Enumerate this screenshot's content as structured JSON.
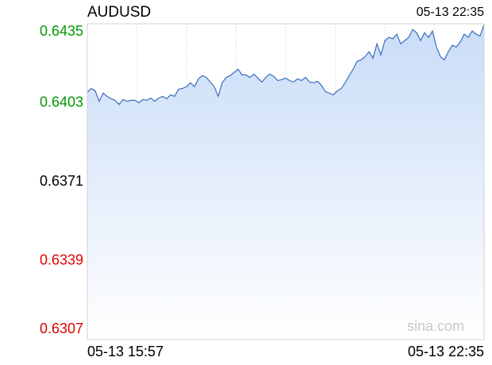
{
  "chart_data": {
    "type": "line",
    "title": "AUDUSD",
    "current_time": "05-13 22:35",
    "watermark": "sina.com",
    "categories": [
      "05-13 15:57",
      null,
      null,
      null,
      null,
      null,
      null,
      null,
      null,
      null,
      null,
      null,
      null,
      null,
      null,
      null,
      null,
      null,
      null,
      null,
      null,
      null,
      null,
      null,
      null,
      null,
      null,
      null,
      null,
      null,
      null,
      null,
      null,
      null,
      null,
      null,
      null,
      null,
      null,
      null,
      null,
      null,
      null,
      null,
      null,
      null,
      null,
      null,
      null,
      null,
      null,
      null,
      null,
      null,
      null,
      null,
      null,
      null,
      null,
      null,
      null,
      null,
      null,
      null,
      null,
      null,
      null,
      null,
      null,
      null,
      null,
      null,
      null,
      null,
      null,
      null,
      null,
      null,
      null,
      null,
      null,
      null,
      null,
      null,
      null,
      null,
      null,
      null,
      null,
      null,
      null,
      null,
      null,
      null,
      null,
      null,
      null,
      null,
      null,
      null,
      "05-13 22:35"
    ],
    "values": [
      0.64072,
      0.64088,
      0.64078,
      0.64036,
      0.64069,
      0.64056,
      0.64046,
      0.6404,
      0.64023,
      0.64043,
      0.64036,
      0.6404,
      0.6404,
      0.6403,
      0.64043,
      0.6404,
      0.64049,
      0.64036,
      0.64049,
      0.64056,
      0.64046,
      0.64062,
      0.64056,
      0.64085,
      0.64088,
      0.64095,
      0.64111,
      0.64095,
      0.64127,
      0.6414,
      0.64133,
      0.64114,
      0.64095,
      0.64056,
      0.64111,
      0.64133,
      0.6414,
      0.64153,
      0.64166,
      0.64143,
      0.64143,
      0.64133,
      0.64146,
      0.6413,
      0.64114,
      0.64133,
      0.64146,
      0.64137,
      0.6412,
      0.64124,
      0.6413,
      0.6412,
      0.64114,
      0.64127,
      0.6412,
      0.64133,
      0.64114,
      0.64111,
      0.64117,
      0.64101,
      0.64075,
      0.64069,
      0.64062,
      0.64078,
      0.64088,
      0.64111,
      0.6414,
      0.64166,
      0.64198,
      0.64204,
      0.64217,
      0.64237,
      0.64211,
      0.64269,
      0.64224,
      0.64282,
      0.64295,
      0.64289,
      0.64308,
      0.64269,
      0.64282,
      0.64295,
      0.64327,
      0.64314,
      0.64282,
      0.64314,
      0.64295,
      0.64321,
      0.64256,
      0.64217,
      0.64204,
      0.64237,
      0.64263,
      0.64256,
      0.64276,
      0.64308,
      0.64295,
      0.64321,
      0.64308,
      0.64301,
      0.64347
    ],
    "color": "#3a6cc0",
    "ylim": [
      0.6307,
      0.6435
    ],
    "yticks": [
      0.6307,
      0.6339,
      0.6371,
      0.6403,
      0.6435
    ],
    "ytick_colors": [
      "#e00000",
      "#e00000",
      "#000000",
      "#009900",
      "#009900"
    ],
    "grid": true
  }
}
